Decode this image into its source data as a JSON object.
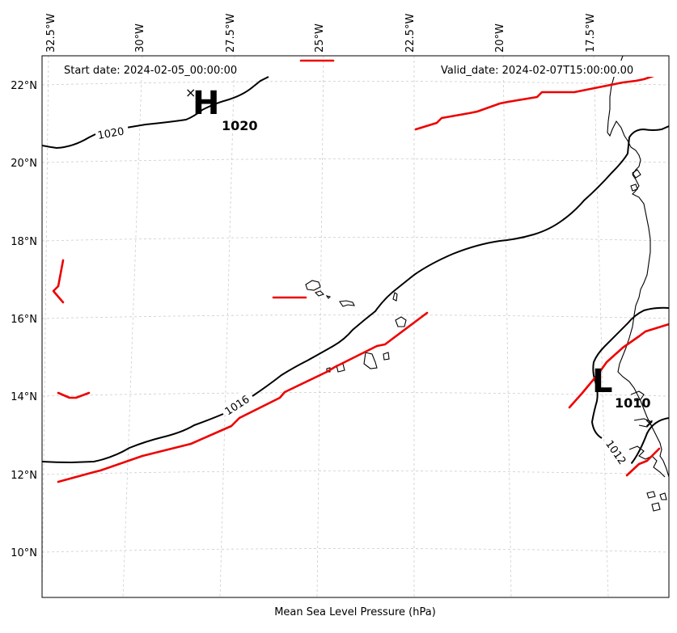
{
  "map": {
    "type": "mean-sea-level-pressure",
    "projection": "lambert-conformal",
    "region": "Eastern Atlantic / West Africa coast",
    "start_date_label": "Start date: 2024-02-05_00:00:00",
    "valid_date_label": "Valid_date: 2024-02-07T15:00:00.00",
    "caption": "Mean Sea Level Pressure (hPa)",
    "longitude_ticks": [
      "32.5°W",
      "30°W",
      "27.5°W",
      "25°W",
      "22.5°W",
      "20°W",
      "17.5°W"
    ],
    "latitude_ticks": [
      "22°N",
      "20°N",
      "18°N",
      "16°N",
      "14°N",
      "12°N",
      "10°N"
    ],
    "isobar_labels": [
      "1020",
      "1016",
      "1012"
    ],
    "pressure_centers": [
      {
        "type": "high",
        "letter": "H",
        "value": "1020",
        "marker": "×"
      },
      {
        "type": "low",
        "letter": "L",
        "value": "1010",
        "marker": "×"
      }
    ],
    "colors": {
      "isobar": "#000000",
      "front": "#ee0000",
      "grid": "#cccccc",
      "coast": "#000000"
    }
  }
}
